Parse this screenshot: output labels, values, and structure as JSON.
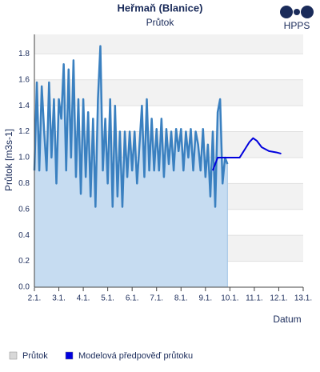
{
  "chart_data": {
    "type": "line",
    "title": "Heřmaň (Blanice)",
    "subtitle": "Průtok",
    "logo": "HPPS",
    "y_label": "Průtok [m3s-1]",
    "x_label": "Datum",
    "xlim": [
      2,
      13
    ],
    "ylim": [
      0,
      1.95
    ],
    "xticks": [
      {
        "value": 2,
        "label": "2.1."
      },
      {
        "value": 3,
        "label": "3.1."
      },
      {
        "value": 4,
        "label": "4.1."
      },
      {
        "value": 5,
        "label": "5.1."
      },
      {
        "value": 6,
        "label": "6.1."
      },
      {
        "value": 7,
        "label": "7.1."
      },
      {
        "value": 8,
        "label": "8.1."
      },
      {
        "value": 9,
        "label": "9.1."
      },
      {
        "value": 10,
        "label": "10.1."
      },
      {
        "value": 11,
        "label": "11.1."
      },
      {
        "value": 12,
        "label": "12.1."
      },
      {
        "value": 13,
        "label": "13.1."
      }
    ],
    "yticks": [
      {
        "value": 0,
        "label": "0.0"
      },
      0.2,
      0.4,
      0.6,
      0.8,
      {
        "value": 1,
        "label": "1.0"
      },
      1.2,
      1.4,
      1.6,
      1.8
    ],
    "bands": true,
    "series": [
      {
        "name": "Průtok",
        "color": "#3a80c0",
        "fill": "#c6dcf1",
        "legend_color": "#d8d8d8",
        "x": [
          2.0,
          2.1,
          2.2,
          2.3,
          2.4,
          2.5,
          2.6,
          2.7,
          2.8,
          2.9,
          3.0,
          3.1,
          3.2,
          3.3,
          3.4,
          3.5,
          3.6,
          3.7,
          3.8,
          3.9,
          4.0,
          4.1,
          4.2,
          4.3,
          4.4,
          4.5,
          4.6,
          4.7,
          4.8,
          4.9,
          5.0,
          5.1,
          5.2,
          5.3,
          5.4,
          5.5,
          5.6,
          5.7,
          5.8,
          5.9,
          6.0,
          6.1,
          6.2,
          6.3,
          6.4,
          6.5,
          6.6,
          6.7,
          6.8,
          6.9,
          7.0,
          7.1,
          7.2,
          7.3,
          7.4,
          7.5,
          7.6,
          7.7,
          7.8,
          7.9,
          8.0,
          8.1,
          8.2,
          8.3,
          8.4,
          8.5,
          8.6,
          8.7,
          8.8,
          8.9,
          9.0,
          9.1,
          9.2,
          9.3,
          9.4,
          9.5,
          9.6,
          9.7,
          9.8,
          9.9
        ],
        "values": [
          0.9,
          1.58,
          0.9,
          1.55,
          1.2,
          0.9,
          1.58,
          1.0,
          1.45,
          0.8,
          1.45,
          1.3,
          1.72,
          0.9,
          1.68,
          1.0,
          1.75,
          0.85,
          1.45,
          0.72,
          1.45,
          0.85,
          1.35,
          0.7,
          1.3,
          0.62,
          1.45,
          1.86,
          0.9,
          1.3,
          0.8,
          1.45,
          0.62,
          1.4,
          0.7,
          1.2,
          0.62,
          1.2,
          0.85,
          1.2,
          0.9,
          1.2,
          0.8,
          1.1,
          1.4,
          0.85,
          1.45,
          0.9,
          1.3,
          0.9,
          1.22,
          0.9,
          1.3,
          0.85,
          1.22,
          0.95,
          1.2,
          0.9,
          1.22,
          1.05,
          1.22,
          0.9,
          1.2,
          1.0,
          1.22,
          0.9,
          1.2,
          1.1,
          0.9,
          1.22,
          0.85,
          1.1,
          0.7,
          1.2,
          0.62,
          1.35,
          1.45,
          0.8,
          1.0,
          0.95
        ]
      },
      {
        "name": "Modelová předpověď průtoku",
        "color": "#0000dd",
        "legend_color": "#0000dd",
        "x": [
          9.3,
          9.5,
          10.4,
          10.6,
          10.8,
          10.95,
          11.1,
          11.3,
          11.6,
          11.9,
          12.1
        ],
        "values": [
          0.9,
          1.0,
          1.0,
          1.06,
          1.12,
          1.15,
          1.13,
          1.08,
          1.05,
          1.04,
          1.03
        ]
      }
    ]
  }
}
